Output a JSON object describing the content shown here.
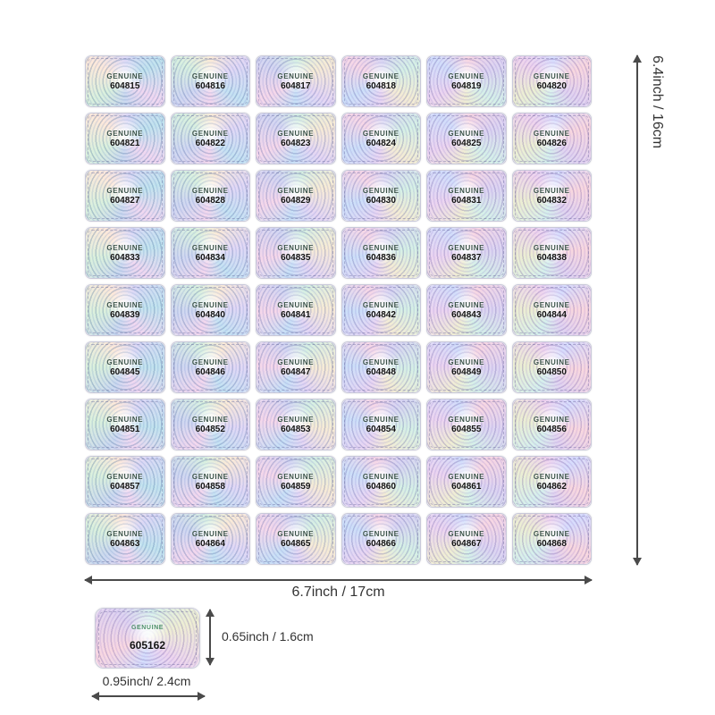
{
  "sheet": {
    "sticker_label": "GENUINE",
    "rows": 9,
    "cols": 6,
    "serials": [
      "604815",
      "604816",
      "604817",
      "604818",
      "604819",
      "604820",
      "604821",
      "604822",
      "604823",
      "604824",
      "604825",
      "604826",
      "604827",
      "604828",
      "604829",
      "604830",
      "604831",
      "604832",
      "604833",
      "604834",
      "604835",
      "604836",
      "604837",
      "604838",
      "604839",
      "604840",
      "604841",
      "604842",
      "604843",
      "604844",
      "604845",
      "604846",
      "604847",
      "604848",
      "604849",
      "604850",
      "604851",
      "604852",
      "604853",
      "604854",
      "604855",
      "604856",
      "604857",
      "604858",
      "604859",
      "604860",
      "604861",
      "604862",
      "604863",
      "604864",
      "604865",
      "604866",
      "604867",
      "604868"
    ]
  },
  "single_sticker": {
    "label": "GENUINE",
    "serial": "605162"
  },
  "dimensions": {
    "sheet_height": "6.4inch / 16cm",
    "sheet_width": "6.7inch / 17cm",
    "single_height": "0.65inch / 1.6cm",
    "single_width": "0.95inch/ 2.4cm"
  },
  "colors": {
    "holo_1": "#e3d4f2",
    "holo_2": "#c7def5",
    "holo_3": "#f4d5e8",
    "holo_4": "#d2d3f0",
    "holo_5": "#d5efe2",
    "holo_6": "#f5ead4",
    "genuine_text": "#3a5248",
    "serial_text": "#111111",
    "dimension_text": "#333333",
    "dimension_line": "#4a4a4a"
  }
}
